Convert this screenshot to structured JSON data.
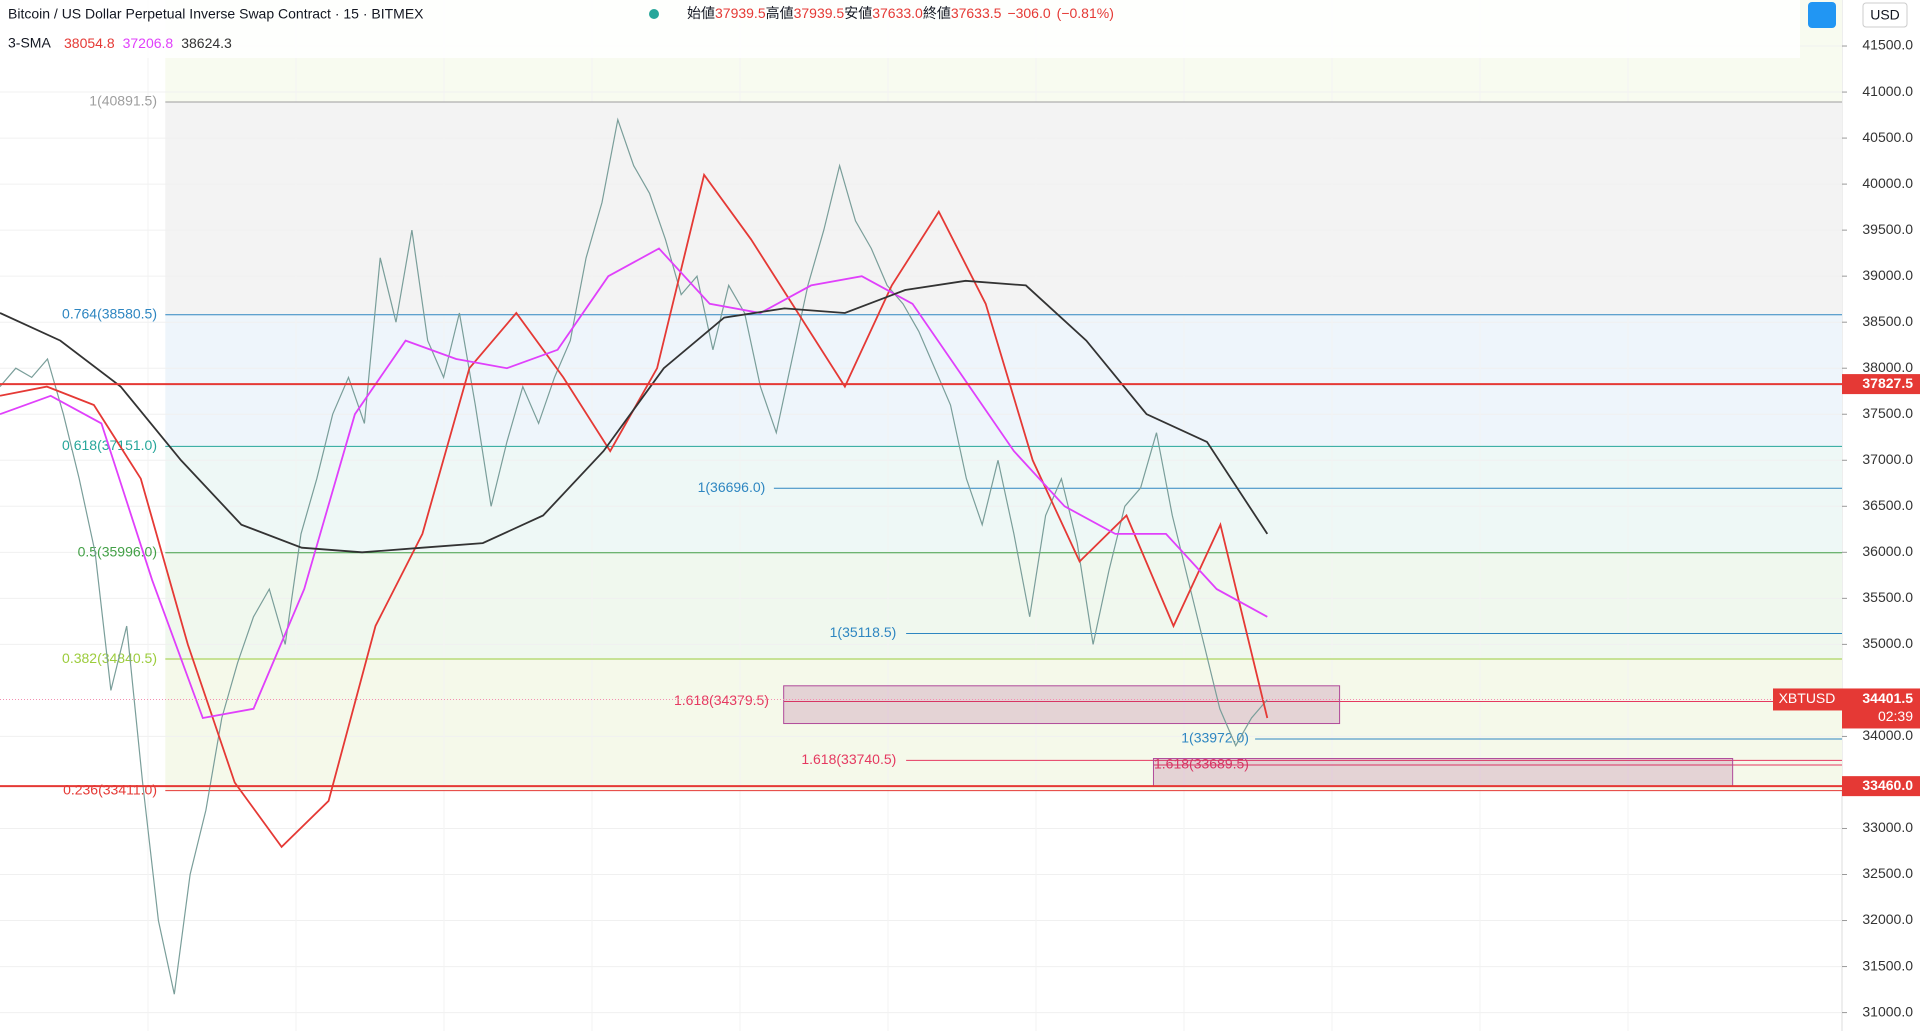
{
  "chart_data": {
    "type": "line",
    "title": "Bitcoin / US Dollar Perpetual Inverse Swap Contract · 15 · BITMEX",
    "ohlc": [
      {
        "name": "始値",
        "value": 37939.5,
        "label": "37939.5"
      },
      {
        "name": "高値",
        "value": 37939.5,
        "label": "37939.5"
      },
      {
        "name": "安値",
        "value": 37633.0,
        "label": "37633.0"
      },
      {
        "name": "終値",
        "value": 37633.5,
        "label": "37633.5"
      }
    ],
    "change": {
      "value": -306.0,
      "label": "−306.0"
    },
    "change_pct": {
      "value": -0.81,
      "label": "(−0.81%)"
    },
    "indicator": "3-SMA",
    "indicator_values": [
      {
        "value": 38054.8,
        "label": "38054.8",
        "color": "#e53935"
      },
      {
        "value": 37206.8,
        "label": "37206.8",
        "color": "#e040fb"
      },
      {
        "value": 38624.3,
        "label": "38624.3",
        "color": "#333333"
      }
    ],
    "currency": "USD",
    "ylim": [
      30800,
      42000
    ],
    "yticks": [
      {
        "value": 31000,
        "label": "31000.0"
      },
      {
        "value": 31500,
        "label": "31500.0"
      },
      {
        "value": 32000,
        "label": "32000.0"
      },
      {
        "value": 32500,
        "label": "32500.0"
      },
      {
        "value": 33000,
        "label": "33000.0"
      },
      {
        "value": 34000,
        "label": "34000.0"
      },
      {
        "value": 35000,
        "label": "35000.0"
      },
      {
        "value": 35500,
        "label": "35500.0"
      },
      {
        "value": 36000,
        "label": "36000.0"
      },
      {
        "value": 36500,
        "label": "36500.0"
      },
      {
        "value": 37000,
        "label": "37000.0"
      },
      {
        "value": 37500,
        "label": "37500.0"
      },
      {
        "value": 38000,
        "label": "38000.0"
      },
      {
        "value": 38500,
        "label": "38500.0"
      },
      {
        "value": 39000,
        "label": "39000.0"
      },
      {
        "value": 39500,
        "label": "39500.0"
      },
      {
        "value": 40000,
        "label": "40000.0"
      },
      {
        "value": 40500,
        "label": "40500.0"
      },
      {
        "value": 41000,
        "label": "41000.0"
      },
      {
        "value": 41500,
        "label": "41500.0"
      }
    ],
    "grid": true,
    "series": [
      {
        "color": "#7a9e9a",
        "values": [
          37800,
          38000,
          37900,
          38100,
          37500,
          36800,
          36000,
          34500,
          35200,
          33500,
          32000,
          31200,
          32500,
          33200,
          34200,
          34800,
          35300,
          35600,
          35000,
          36200,
          36800,
          37500,
          37900,
          37400,
          39200,
          38500,
          39500,
          38300,
          37900,
          38600,
          37600,
          36500,
          37200,
          37800,
          37400,
          37900,
          38300,
          39200,
          39800,
          40700,
          40200,
          39900,
          39400,
          38800,
          39000,
          38200,
          38900,
          38600,
          37800,
          37300,
          38100,
          38900,
          39500,
          40200,
          39600,
          39300,
          38900,
          38700,
          38400,
          38000,
          37600,
          36800,
          36300,
          37000,
          36200,
          35300,
          36400,
          36800,
          36100,
          35000,
          35800,
          36500,
          36700,
          37300,
          36400,
          35700,
          35000,
          34300,
          33900,
          34200,
          34400
        ]
      },
      {
        "color": "#e53935",
        "values": [
          37700,
          37800,
          37600,
          36800,
          35000,
          33500,
          32800,
          33300,
          35200,
          36200,
          38000,
          38600,
          37900,
          37100,
          38000,
          40100,
          39400,
          38600,
          37800,
          38900,
          39700,
          38700,
          37000,
          35900,
          36400,
          35200,
          36300,
          34200
        ]
      },
      {
        "color": "#e040fb",
        "values": [
          37500,
          37700,
          37400,
          35700,
          34200,
          34300,
          35600,
          37500,
          38300,
          38100,
          38000,
          38200,
          39000,
          39300,
          38700,
          38600,
          38900,
          39000,
          38700,
          37900,
          37100,
          36500,
          36200,
          36200,
          35600,
          35300
        ]
      },
      {
        "color": "#333333",
        "values": [
          38600,
          38300,
          37800,
          37000,
          36300,
          36050,
          36000,
          36050,
          36100,
          36400,
          37100,
          38000,
          38550,
          38650,
          38600,
          38850,
          38950,
          38900,
          38300,
          37500,
          37200,
          36200
        ]
      }
    ],
    "fib_levels": [
      {
        "value": 40891.5,
        "label": "1(40891.5)",
        "color": "#9e9e9e",
        "band": "#f3f3f3"
      },
      {
        "value": 38580.5,
        "label": "0.764(38580.5)",
        "color": "#2e86c1",
        "band": "#eef5fb"
      },
      {
        "value": 37151.0,
        "label": "0.618(37151.0)",
        "color": "#26a69a",
        "band": "#eef8f6"
      },
      {
        "value": 35996.0,
        "label": "0.5(35996.0)",
        "color": "#43a047",
        "band": "#f0f8ee"
      },
      {
        "value": 34840.5,
        "label": "0.382(34840.5)",
        "color": "#9ccc3c",
        "band": "#f5f9ea"
      },
      {
        "value": 33411.0,
        "label": "0.236(33411.0)",
        "color": "#e53935",
        "band": "#ffffff"
      }
    ],
    "ext_levels": [
      {
        "value": 36696.0,
        "label": "1(36696.0)",
        "color": "#2e86c1"
      },
      {
        "value": 35118.5,
        "label": "1(35118.5)",
        "color": "#2e86c1"
      },
      {
        "value": 34379.5,
        "label": "1.618(34379.5)",
        "color": "#e53960"
      },
      {
        "value": 33972.0,
        "label": "1(33972.0)",
        "color": "#2e86c1"
      },
      {
        "value": 33740.5,
        "label": "1.618(33740.5)",
        "color": "#e53960"
      },
      {
        "value": 33689.5,
        "label": "1.618(33689.5)",
        "color": "#e53960"
      }
    ],
    "zones": [
      {
        "ylim": [
          34140,
          34550
        ]
      },
      {
        "ylim": [
          33460,
          33760
        ]
      }
    ],
    "price_lines": [
      {
        "value": 37827.5,
        "label": "37827.5"
      },
      {
        "value": 33460.0,
        "label": "33460.0"
      }
    ],
    "last_price": {
      "symbol": "XBTUSD",
      "value": 34401.5,
      "label": "34401.5",
      "countdown": "02:39"
    }
  }
}
